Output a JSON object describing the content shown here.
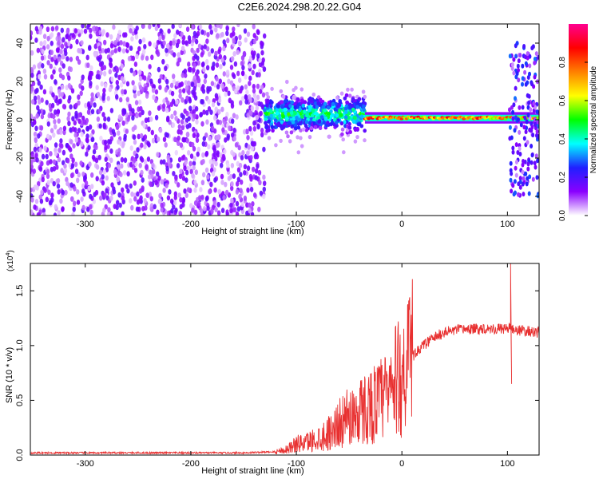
{
  "title": "C2E6.2024.298.20.22.G04",
  "chart_data": [
    {
      "type": "heatmap",
      "xlabel": "Height of straight line (km)",
      "ylabel": "Frequency (Hz)",
      "xlim": [
        -352,
        130
      ],
      "ylim": [
        -50,
        50
      ],
      "xticks": [
        -300,
        -200,
        -100,
        0,
        100
      ],
      "yticks": [
        -40,
        -20,
        0,
        20,
        40
      ],
      "colorbar": {
        "label": "Normalized spectral amplitude",
        "range": [
          0,
          1
        ],
        "ticks": [
          "0.0",
          "0.2",
          "0.4",
          "0.6",
          "0.8"
        ],
        "colors": [
          "#ffffff",
          "#8a00ff",
          "#2020ff",
          "#00ffff",
          "#00ff00",
          "#ffff00",
          "#ff8000",
          "#ff0000",
          "#ff0090"
        ]
      },
      "regions": [
        {
          "name": "noise",
          "x_range": [
            -352,
            -130
          ],
          "freq_range": [
            -50,
            50
          ],
          "level": 0.1
        },
        {
          "name": "onset",
          "x_range": [
            -130,
            -35
          ],
          "freq_range": [
            -10,
            18
          ],
          "center_freq": 3,
          "level": 0.35
        },
        {
          "name": "carrier",
          "x_range": [
            -35,
            100
          ],
          "freq_range": [
            -2,
            4
          ],
          "center_freq": 1,
          "level": 0.75
        },
        {
          "name": "edge",
          "x_range": [
            102,
            130
          ],
          "freq_range": [
            -40,
            40
          ],
          "level": 0.15
        }
      ]
    },
    {
      "type": "line",
      "xlabel": "Height of straight line (km)",
      "ylabel": "SNR (10 * v/v)",
      "yscale_label": "(x10",
      "yscale_exp": "4",
      "xlim": [
        -352,
        130
      ],
      "ylim": [
        0,
        1.75
      ],
      "xticks": [
        -300,
        -200,
        -100,
        0,
        100
      ],
      "yticks": [
        "0.0",
        "0.5",
        "1.0",
        "1.5"
      ],
      "color": "#e83030",
      "series": [
        {
          "x": [
            -352,
            -300,
            -250,
            -200,
            -150,
            -120,
            -110,
            -100,
            -90,
            -80,
            -70,
            -60,
            -50,
            -40,
            -30,
            -20,
            -10,
            0,
            10,
            20,
            30,
            40,
            50,
            60,
            70,
            80,
            90,
            100,
            110,
            120,
            130
          ],
          "y": [
            0.02,
            0.02,
            0.02,
            0.02,
            0.02,
            0.03,
            0.05,
            0.1,
            0.12,
            0.15,
            0.2,
            0.28,
            0.35,
            0.4,
            0.45,
            0.5,
            0.6,
            0.75,
            0.9,
            1.0,
            1.07,
            1.12,
            1.14,
            1.15,
            1.15,
            1.16,
            1.15,
            1.16,
            1.14,
            1.13,
            1.12
          ]
        }
      ],
      "features": [
        {
          "x": 103,
          "y": 1.75
        },
        {
          "x": 104,
          "y": 0.65
        }
      ]
    }
  ]
}
